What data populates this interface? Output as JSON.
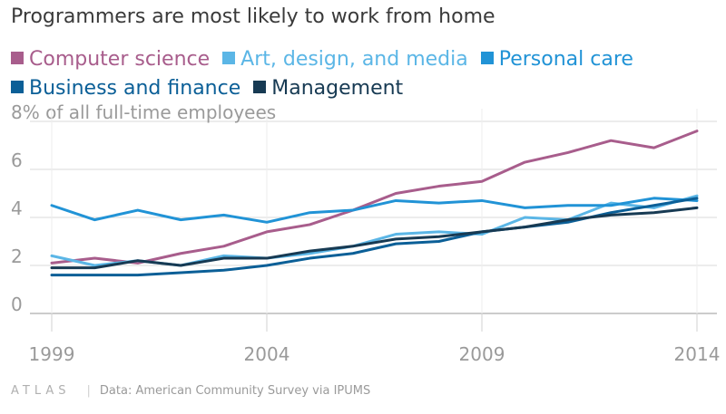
{
  "chart_data": {
    "type": "line",
    "title": "Programmers are most likely to work from home",
    "ylabel": "8% of all full-time employees",
    "x": [
      1999,
      2000,
      2001,
      2002,
      2003,
      2004,
      2005,
      2006,
      2007,
      2008,
      2009,
      2010,
      2011,
      2012,
      2013,
      2014
    ],
    "xticks": [
      "1999",
      "2004",
      "2009",
      "2014"
    ],
    "yticks": [
      "0",
      "2",
      "4",
      "6",
      "8%"
    ],
    "ylim": [
      0,
      8
    ],
    "grid": true,
    "legend_position": "top",
    "series": [
      {
        "name": "Computer science",
        "color": "#a85d8c",
        "values": [
          2.1,
          2.3,
          2.1,
          2.5,
          2.8,
          3.4,
          3.7,
          4.3,
          5.0,
          5.3,
          5.5,
          6.3,
          6.7,
          7.2,
          6.9,
          7.6
        ]
      },
      {
        "name": "Art, design, and media",
        "color": "#5bb6e6",
        "values": [
          2.4,
          2.0,
          2.2,
          2.0,
          2.4,
          2.3,
          2.5,
          2.8,
          3.3,
          3.4,
          3.3,
          4.0,
          3.9,
          4.6,
          4.4,
          4.9
        ]
      },
      {
        "name": "Personal care",
        "color": "#2193d6",
        "values": [
          4.5,
          3.9,
          4.3,
          3.9,
          4.1,
          3.8,
          4.2,
          4.3,
          4.7,
          4.6,
          4.7,
          4.4,
          4.5,
          4.5,
          4.8,
          4.7
        ]
      },
      {
        "name": "Business and finance",
        "color": "#0b5f97",
        "values": [
          1.6,
          1.6,
          1.6,
          1.7,
          1.8,
          2.0,
          2.3,
          2.5,
          2.9,
          3.0,
          3.4,
          3.6,
          3.8,
          4.2,
          4.5,
          4.8
        ]
      },
      {
        "name": "Management",
        "color": "#173a53",
        "values": [
          1.9,
          1.9,
          2.2,
          2.0,
          2.3,
          2.3,
          2.6,
          2.8,
          3.1,
          3.2,
          3.4,
          3.6,
          3.9,
          4.1,
          4.2,
          4.4
        ]
      }
    ]
  },
  "footer": {
    "logo": "ATLAS",
    "source": "Data: American Community Survey via IPUMS"
  }
}
